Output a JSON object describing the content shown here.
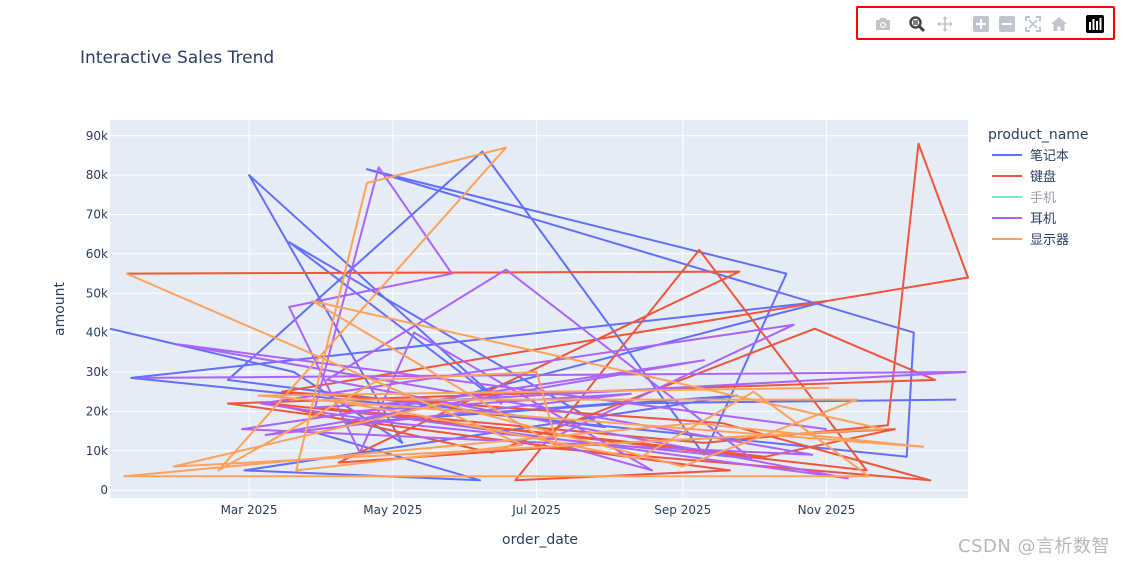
{
  "toolbar": {
    "items": [
      {
        "name": "camera-icon",
        "title": "Download plot as a png"
      },
      {
        "name": "zoom-icon",
        "title": "Zoom"
      },
      {
        "name": "pan-icon",
        "title": "Pan"
      },
      {
        "name": "zoom-in-icon",
        "title": "Zoom in"
      },
      {
        "name": "zoom-out-icon",
        "title": "Zoom out"
      },
      {
        "name": "autoscale-icon",
        "title": "Autoscale"
      },
      {
        "name": "reset-axes-icon",
        "title": "Reset axes"
      },
      {
        "name": "plotly-logo-icon",
        "title": "Produced with Plotly"
      }
    ],
    "highlight_color": "#ff0000"
  },
  "watermark": "CSDN @言析数智",
  "chart_data": {
    "type": "line",
    "title": "Interactive Sales Trend",
    "xlabel": "order_date",
    "ylabel": "amount",
    "x_type": "date",
    "xlim": [
      "2025-01-01",
      "2025-12-31"
    ],
    "ylim": [
      -2000,
      94000
    ],
    "x_ticks": [
      "Mar 2025",
      "May 2025",
      "Jul 2025",
      "Sep 2025",
      "Nov 2025"
    ],
    "y_ticks": [
      "0",
      "10k",
      "20k",
      "30k",
      "40k",
      "50k",
      "60k",
      "70k",
      "80k",
      "90k"
    ],
    "grid": true,
    "plot_background": "#e5ecf6",
    "legend": {
      "title": "product_name",
      "position": "right"
    },
    "series": [
      {
        "name": "笔记本",
        "color": "#636efa",
        "hidden": false,
        "x": [
          "2025-01-01",
          "2025-03-20",
          "2025-05-05",
          "2025-03-01",
          "2025-06-16",
          "2025-03-18",
          "2025-07-30",
          "2025-02-20",
          "2025-06-08",
          "2025-09-10",
          "2025-10-15",
          "2025-04-20",
          "2025-12-08",
          "2025-12-05",
          "2025-01-10",
          "2025-11-01",
          "2025-03-30",
          "2025-06-07",
          "2025-02-27",
          "2025-09-24",
          "2025-04-11",
          "2025-08-02",
          "2025-12-26"
        ],
        "y": [
          41000,
          30000,
          12000,
          80000,
          22000,
          63000,
          16000,
          28000,
          86000,
          9000,
          55000,
          81500,
          40000,
          8500,
          28500,
          48000,
          14500,
          2500,
          5000,
          24000,
          17000,
          22000,
          23000
        ]
      },
      {
        "name": "键盘",
        "color": "#ef553b",
        "hidden": false,
        "x": [
          "2025-01-08",
          "2025-09-25",
          "2025-04-08",
          "2025-08-04",
          "2025-11-30",
          "2025-10-06",
          "2025-03-10",
          "2025-06-12",
          "2025-10-27",
          "2025-12-17",
          "2025-02-20",
          "2025-05-18",
          "2025-09-21",
          "2025-06-22",
          "2025-09-08",
          "2025-11-18",
          "2025-03-29",
          "2025-09-10",
          "2025-11-27",
          "2025-12-10",
          "2025-12-31",
          "2025-03-15",
          "2025-09-18",
          "2025-12-15",
          "2025-06-30"
        ],
        "y": [
          55000,
          55500,
          7000,
          12000,
          15500,
          8500,
          22000,
          9500,
          41000,
          28000,
          22000,
          15000,
          5000,
          2500,
          61000,
          5000,
          21000,
          12000,
          16500,
          88000,
          54000,
          25000,
          17000,
          2500,
          11000
        ]
      },
      {
        "name": "手机",
        "color": "#00cc96",
        "hidden": true,
        "x": [],
        "y": []
      },
      {
        "name": "耳机",
        "color": "#ab63fa",
        "hidden": false,
        "x": [
          "2025-01-15",
          "2025-12-30",
          "2025-03-29",
          "2025-04-25",
          "2025-05-26",
          "2025-03-18",
          "2025-04-17",
          "2025-05-10",
          "2025-08-19",
          "2025-07-05",
          "2025-10-18",
          "2025-03-06",
          "2025-05-02",
          "2025-09-30",
          "2025-06-18",
          "2025-04-03",
          "2025-11-10",
          "2025-04-14",
          "2025-08-10",
          "2025-03-08",
          "2025-09-10",
          "2025-02-26",
          "2025-10-26",
          "2025-01-30",
          "2025-11-01"
        ],
        "y": [
          28500,
          30000,
          21000,
          82000,
          55000,
          46500,
          9500,
          40000,
          5000,
          12500,
          42000,
          22000,
          17000,
          8000,
          56000,
          28000,
          3000,
          20000,
          24500,
          14000,
          33000,
          15500,
          9000,
          37000,
          15500
        ]
      },
      {
        "name": "显示器",
        "color": "#ffa15a",
        "hidden": false,
        "x": [
          "2025-01-08",
          "2025-06-25",
          "2025-03-21",
          "2025-04-20",
          "2025-06-18",
          "2025-02-16",
          "2025-04-25",
          "2025-07-01",
          "2025-07-10",
          "2025-03-28",
          "2025-11-25",
          "2025-01-28",
          "2025-05-22",
          "2025-09-01",
          "2025-11-14",
          "2025-04-02",
          "2025-05-12",
          "2025-08-13",
          "2025-10-01",
          "2025-11-19",
          "2025-01-07",
          "2025-09-06",
          "2025-12-12",
          "2025-03-05",
          "2025-11-02"
        ],
        "y": [
          55000,
          11500,
          5000,
          78000,
          87000,
          5000,
          28000,
          30000,
          11000,
          48000,
          15500,
          6000,
          22000,
          6000,
          23000,
          23000,
          19000,
          8000,
          25000,
          3500,
          3500,
          17000,
          11000,
          24000,
          26000
        ]
      }
    ]
  }
}
